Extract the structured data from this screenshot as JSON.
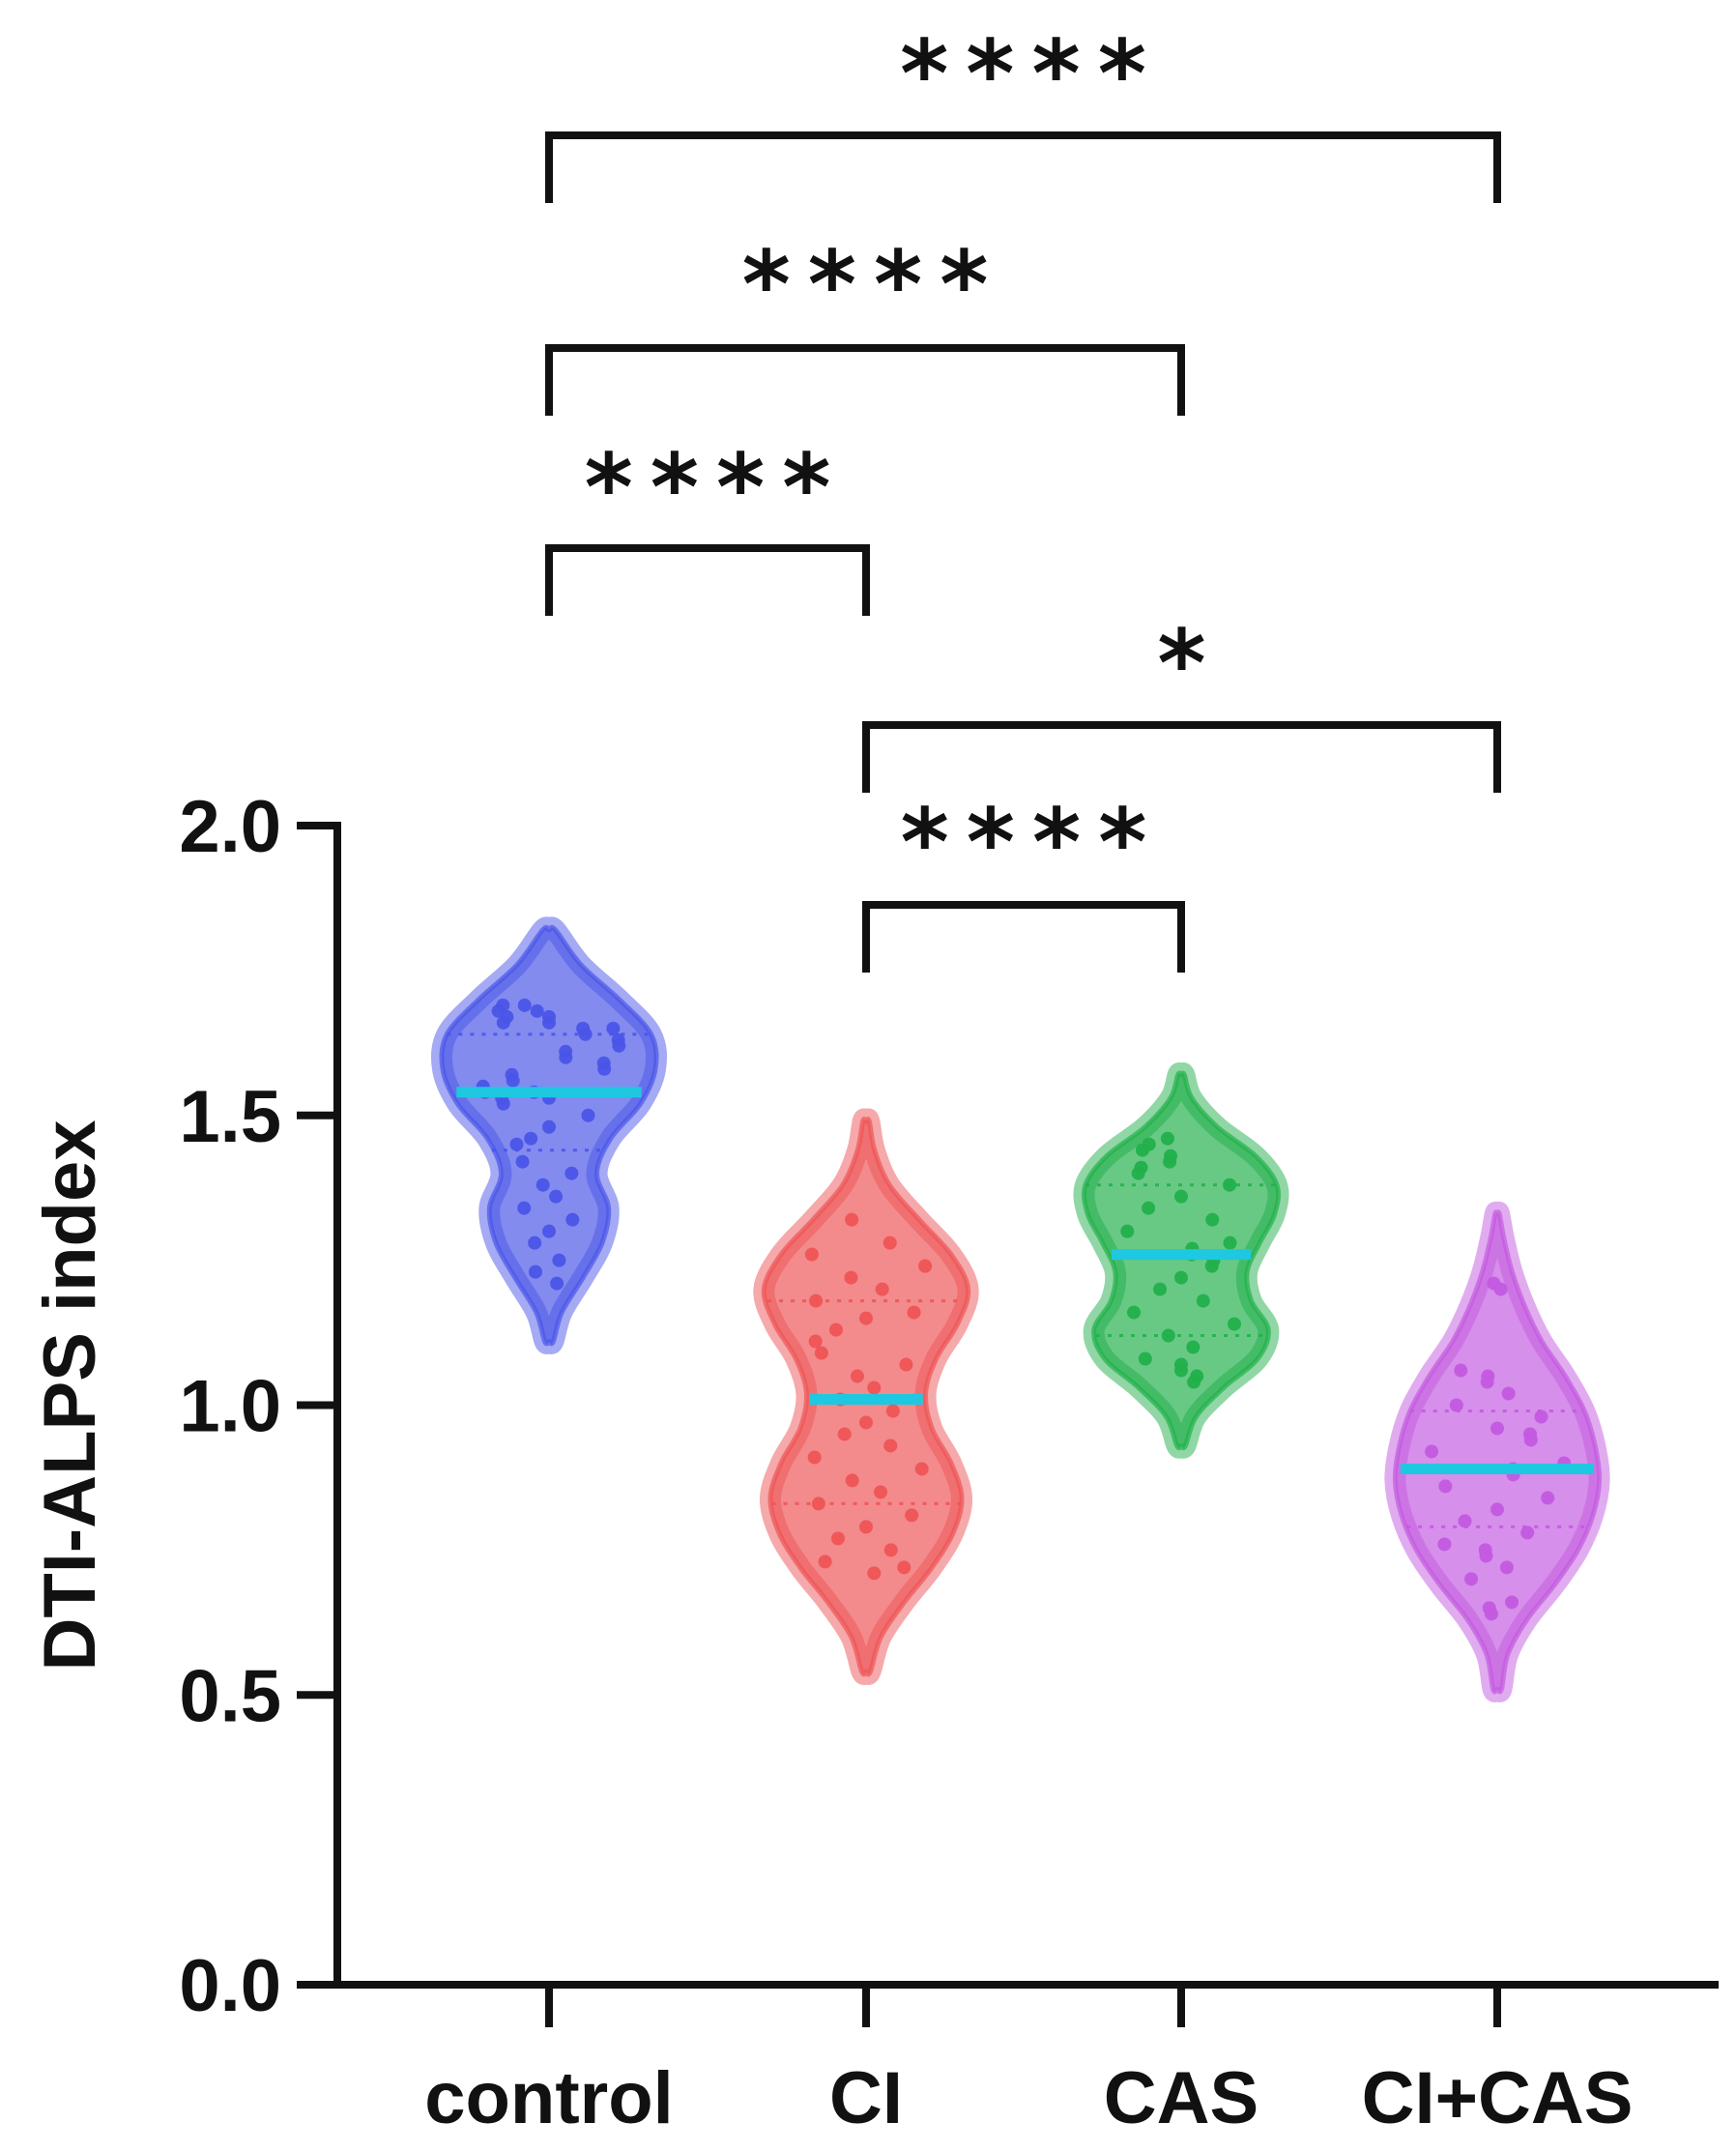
{
  "chart_data": {
    "type": "violin",
    "ylabel": "DTI-ALPS index",
    "xlabel": "",
    "ylim": [
      0.0,
      2.0
    ],
    "yticks": [
      0.0,
      0.5,
      1.0,
      1.5,
      2.0
    ],
    "ytick_labels": [
      "0.0",
      "0.5",
      "1.0",
      "1.5",
      "2.0"
    ],
    "grid": false,
    "median_color": "#1ec8e0",
    "groups": [
      {
        "name": "control",
        "color": "#4a55e8",
        "min": 1.11,
        "max": 1.82,
        "q1": 1.44,
        "median": 1.54,
        "q3": 1.64,
        "density": [
          [
            1.11,
            0.04
          ],
          [
            1.16,
            0.12
          ],
          [
            1.22,
            0.32
          ],
          [
            1.28,
            0.5
          ],
          [
            1.34,
            0.56
          ],
          [
            1.4,
            0.45
          ],
          [
            1.46,
            0.58
          ],
          [
            1.52,
            0.86
          ],
          [
            1.58,
            1.0
          ],
          [
            1.64,
            0.96
          ],
          [
            1.7,
            0.66
          ],
          [
            1.76,
            0.3
          ],
          [
            1.82,
            0.06
          ]
        ],
        "points": [
          1.69,
          1.69,
          1.68,
          1.68,
          1.67,
          1.67,
          1.66,
          1.66,
          1.65,
          1.65,
          1.64,
          1.63,
          1.62,
          1.61,
          1.6,
          1.59,
          1.58,
          1.57,
          1.56,
          1.55,
          1.54,
          1.54,
          1.53,
          1.53,
          1.52,
          1.5,
          1.48,
          1.46,
          1.45,
          1.42,
          1.4,
          1.38,
          1.36,
          1.34,
          1.32,
          1.3,
          1.28,
          1.25,
          1.23,
          1.21
        ]
      },
      {
        "name": "CI",
        "color": "#ee5455",
        "min": 0.54,
        "max": 1.49,
        "q1": 0.83,
        "median": 1.01,
        "q3": 1.18,
        "density": [
          [
            0.54,
            0.04
          ],
          [
            0.6,
            0.14
          ],
          [
            0.66,
            0.36
          ],
          [
            0.72,
            0.62
          ],
          [
            0.78,
            0.82
          ],
          [
            0.84,
            0.9
          ],
          [
            0.9,
            0.8
          ],
          [
            0.96,
            0.62
          ],
          [
            1.02,
            0.56
          ],
          [
            1.08,
            0.66
          ],
          [
            1.14,
            0.86
          ],
          [
            1.2,
            0.96
          ],
          [
            1.26,
            0.8
          ],
          [
            1.32,
            0.5
          ],
          [
            1.38,
            0.22
          ],
          [
            1.44,
            0.08
          ],
          [
            1.49,
            0.03
          ]
        ],
        "points": [
          1.32,
          1.28,
          1.26,
          1.24,
          1.22,
          1.2,
          1.18,
          1.16,
          1.15,
          1.13,
          1.11,
          1.09,
          1.07,
          1.05,
          1.03,
          1.01,
          0.99,
          0.97,
          0.95,
          0.93,
          0.91,
          0.89,
          0.87,
          0.85,
          0.83,
          0.81,
          0.79,
          0.77,
          0.75,
          0.73,
          0.72,
          0.71
        ]
      },
      {
        "name": "CAS",
        "color": "#22b04b",
        "min": 0.93,
        "max": 1.57,
        "q1": 1.12,
        "median": 1.26,
        "q3": 1.38,
        "density": [
          [
            0.93,
            0.04
          ],
          [
            0.98,
            0.14
          ],
          [
            1.03,
            0.4
          ],
          [
            1.08,
            0.72
          ],
          [
            1.13,
            0.82
          ],
          [
            1.18,
            0.66
          ],
          [
            1.23,
            0.62
          ],
          [
            1.28,
            0.74
          ],
          [
            1.33,
            0.88
          ],
          [
            1.38,
            0.9
          ],
          [
            1.43,
            0.7
          ],
          [
            1.48,
            0.34
          ],
          [
            1.53,
            0.1
          ],
          [
            1.57,
            0.03
          ]
        ],
        "points": [
          1.46,
          1.45,
          1.44,
          1.43,
          1.42,
          1.41,
          1.4,
          1.38,
          1.36,
          1.34,
          1.32,
          1.3,
          1.28,
          1.27,
          1.26,
          1.25,
          1.24,
          1.22,
          1.2,
          1.18,
          1.16,
          1.14,
          1.12,
          1.1,
          1.08,
          1.07,
          1.06,
          1.05,
          1.04
        ]
      },
      {
        "name": "CI+CAS",
        "color": "#c35ae0",
        "min": 0.51,
        "max": 1.33,
        "q1": 0.79,
        "median": 0.89,
        "q3": 0.99,
        "density": [
          [
            0.51,
            0.04
          ],
          [
            0.57,
            0.1
          ],
          [
            0.63,
            0.28
          ],
          [
            0.69,
            0.54
          ],
          [
            0.75,
            0.76
          ],
          [
            0.81,
            0.9
          ],
          [
            0.87,
            0.96
          ],
          [
            0.93,
            0.92
          ],
          [
            0.99,
            0.82
          ],
          [
            1.05,
            0.64
          ],
          [
            1.11,
            0.42
          ],
          [
            1.17,
            0.26
          ],
          [
            1.23,
            0.14
          ],
          [
            1.29,
            0.06
          ],
          [
            1.33,
            0.02
          ]
        ],
        "points": [
          1.21,
          1.2,
          1.06,
          1.05,
          1.04,
          1.02,
          1.0,
          0.98,
          0.96,
          0.95,
          0.94,
          0.92,
          0.9,
          0.89,
          0.88,
          0.86,
          0.84,
          0.82,
          0.8,
          0.78,
          0.76,
          0.75,
          0.74,
          0.72,
          0.7,
          0.66,
          0.65,
          0.64
        ]
      }
    ],
    "comparisons": [
      {
        "from": "control",
        "to": "CI+CAS",
        "label": "****"
      },
      {
        "from": "control",
        "to": "CAS",
        "label": "****"
      },
      {
        "from": "control",
        "to": "CI",
        "label": "****"
      },
      {
        "from": "CI",
        "to": "CI+CAS",
        "label": "*"
      },
      {
        "from": "CI",
        "to": "CAS",
        "label": "****"
      }
    ]
  }
}
